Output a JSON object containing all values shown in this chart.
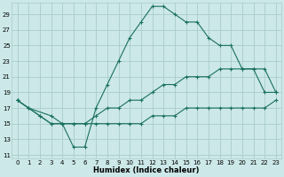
{
  "xlabel": "Humidex (Indice chaleur)",
  "bg_color": "#cce8e8",
  "grid_color": "#aacccc",
  "line_color": "#1a7060",
  "xlim": [
    -0.5,
    23.5
  ],
  "ylim": [
    10.5,
    30.5
  ],
  "xticks": [
    0,
    1,
    2,
    3,
    4,
    5,
    6,
    7,
    8,
    9,
    10,
    11,
    12,
    13,
    14,
    15,
    16,
    17,
    18,
    19,
    20,
    21,
    22,
    23
  ],
  "yticks": [
    11,
    13,
    15,
    17,
    19,
    21,
    23,
    25,
    27,
    29
  ],
  "line1_x": [
    0,
    1,
    3,
    4,
    5,
    6,
    7,
    8,
    9,
    10,
    11,
    12,
    13,
    14,
    15,
    16,
    17,
    18,
    19,
    20,
    21,
    22,
    23
  ],
  "line1_y": [
    18,
    17,
    16,
    15,
    12,
    12,
    17,
    20,
    23,
    26,
    28,
    30,
    30,
    29,
    28,
    28,
    26,
    25,
    25,
    22,
    22,
    19,
    19
  ],
  "line2_x": [
    0,
    1,
    2,
    3,
    4,
    5,
    6,
    7,
    8,
    9,
    10,
    11,
    12,
    13,
    14,
    15,
    16,
    17,
    18,
    19,
    20,
    21,
    22,
    23
  ],
  "line2_y": [
    18,
    17,
    16,
    15,
    15,
    15,
    15,
    15,
    15,
    15,
    15,
    15,
    16,
    16,
    16,
    17,
    17,
    17,
    17,
    17,
    17,
    17,
    17,
    18
  ],
  "line3_x": [
    0,
    1,
    2,
    3,
    4,
    5,
    6,
    7,
    8,
    9,
    10,
    11,
    12,
    13,
    14,
    15,
    16,
    17,
    18,
    19,
    20,
    21,
    22,
    23
  ],
  "line3_y": [
    18,
    17,
    16,
    15,
    15,
    15,
    15,
    16,
    17,
    17,
    18,
    18,
    19,
    20,
    20,
    21,
    21,
    21,
    22,
    22,
    22,
    22,
    22,
    19
  ]
}
